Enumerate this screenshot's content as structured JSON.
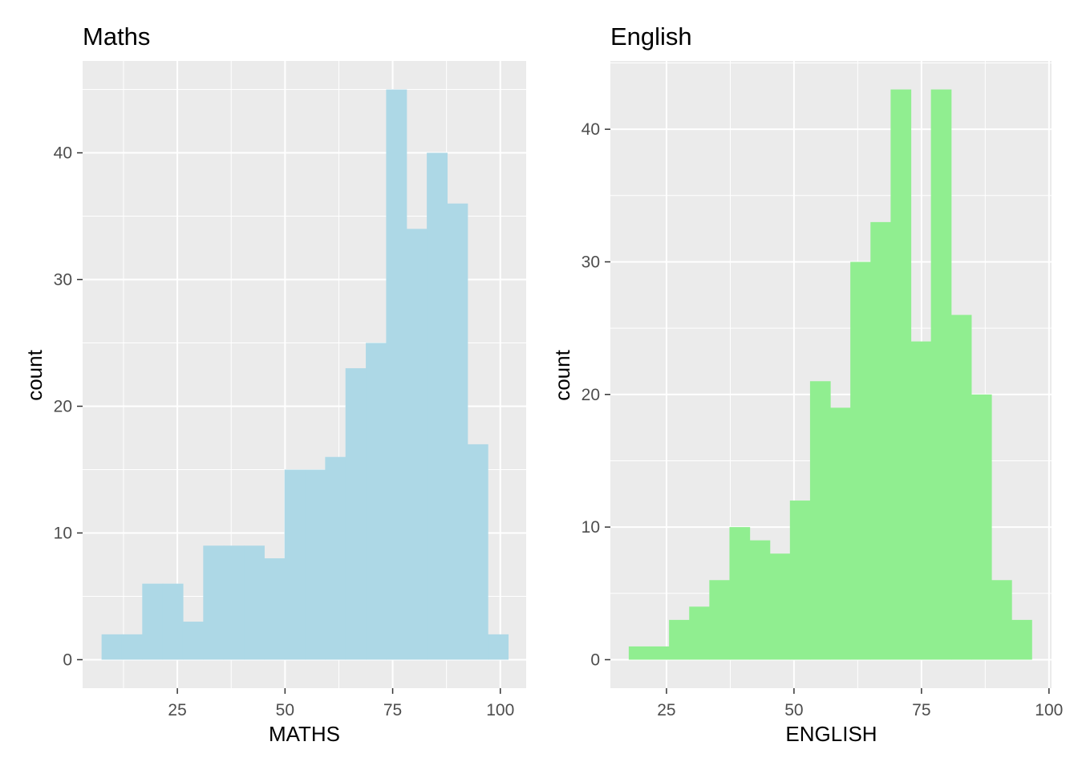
{
  "chart_data": [
    {
      "type": "bar",
      "title": "Maths",
      "xlabel": "MATHS",
      "ylabel": "count",
      "fill": "#add8e6",
      "panel_bg": "#ebebeb",
      "grid": true,
      "xlim": [
        3,
        106
      ],
      "ylim": [
        -2.25,
        47.25
      ],
      "x_ticks": [
        25,
        50,
        75,
        100
      ],
      "y_ticks": [
        0,
        10,
        20,
        30,
        40
      ],
      "bin_start": 7.4,
      "bin_width": 4.72,
      "counts": [
        2,
        2,
        6,
        6,
        3,
        9,
        9,
        9,
        8,
        15,
        15,
        16,
        23,
        25,
        45,
        34,
        40,
        36,
        17,
        2
      ]
    },
    {
      "type": "bar",
      "title": "English",
      "xlabel": "ENGLISH",
      "ylabel": "count",
      "fill": "#90ee90",
      "panel_bg": "#ebebeb",
      "grid": true,
      "xlim": [
        14,
        100.5
      ],
      "ylim": [
        -2.15,
        45.15
      ],
      "x_ticks": [
        25,
        50,
        75,
        100
      ],
      "y_ticks": [
        0,
        10,
        20,
        30,
        40
      ],
      "bin_start": 17.6,
      "bin_width": 3.95,
      "counts": [
        1,
        1,
        3,
        4,
        6,
        10,
        9,
        8,
        12,
        21,
        19,
        30,
        33,
        43,
        24,
        43,
        26,
        20,
        6,
        3
      ]
    }
  ]
}
